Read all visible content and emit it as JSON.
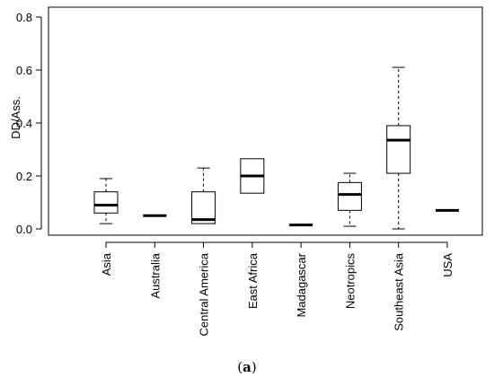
{
  "chart_data": {
    "type": "box",
    "ylabel": "DD/Ass.",
    "ylim": [
      0,
      0.8
    ],
    "yticks": [
      "0.0",
      "0.2",
      "0.4",
      "0.6",
      "0.8"
    ],
    "categories": [
      "Asia",
      "Australia",
      "Central America",
      "East Africa",
      "Madagascar",
      "Neotropics",
      "Southeast Asia",
      "USA"
    ],
    "boxes": [
      {
        "min": 0.02,
        "q1": 0.06,
        "median": 0.09,
        "q3": 0.14,
        "max": 0.19
      },
      {
        "min": 0.05,
        "q1": 0.05,
        "median": 0.05,
        "q3": 0.05,
        "max": 0.05
      },
      {
        "min": 0.02,
        "q1": 0.02,
        "median": 0.035,
        "q3": 0.14,
        "max": 0.23
      },
      {
        "min": 0.135,
        "q1": 0.135,
        "median": 0.2,
        "q3": 0.265,
        "max": 0.265
      },
      {
        "min": 0.015,
        "q1": 0.015,
        "median": 0.015,
        "q3": 0.015,
        "max": 0.015
      },
      {
        "min": 0.01,
        "q1": 0.07,
        "median": 0.13,
        "q3": 0.175,
        "max": 0.21
      },
      {
        "min": 0.0,
        "q1": 0.21,
        "median": 0.335,
        "q3": 0.39,
        "max": 0.61
      },
      {
        "min": 0.07,
        "q1": 0.07,
        "median": 0.07,
        "q3": 0.07,
        "max": 0.07
      }
    ]
  },
  "caption": {
    "open": "(",
    "label": "a",
    "close": ")"
  }
}
